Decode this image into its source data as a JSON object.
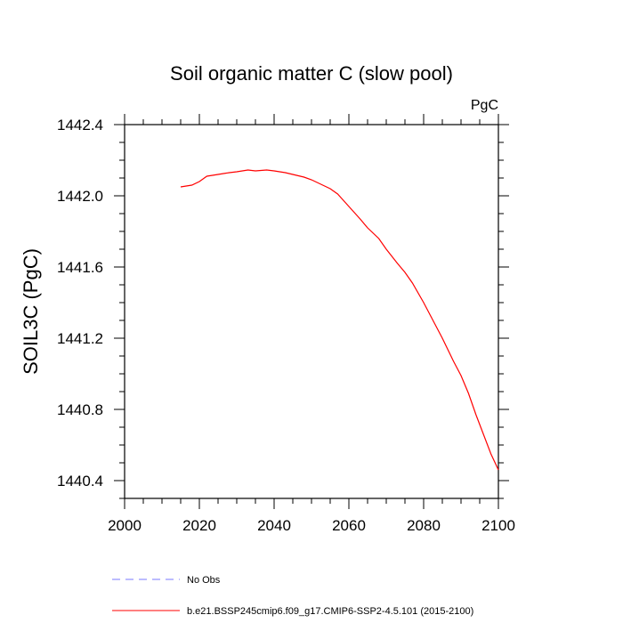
{
  "chart_data": {
    "type": "line",
    "title": "Soil organic matter C (slow pool)",
    "units_label": "PgC",
    "ylabel": "SOIL3C  (PgC)",
    "xlabel": "",
    "xlim": [
      2000,
      2100
    ],
    "ylim": [
      1440.3,
      1442.4
    ],
    "x_ticks": [
      "2000",
      "2020",
      "2040",
      "2060",
      "2080",
      "2100"
    ],
    "y_ticks": [
      "1440.4",
      "1440.8",
      "1441.2",
      "1441.6",
      "1442.0",
      "1442.4"
    ],
    "grid": false,
    "legend_position": "bottom",
    "series": [
      {
        "name": "No Obs",
        "color": "#7a7aff",
        "style": "dashed",
        "x": [],
        "y": []
      },
      {
        "name": "b.e21.BSSP245cmip6.f09_g17.CMIP6-SSP2-4.5.101 (2015-2100)",
        "color": "#ff0000",
        "style": "solid",
        "x": [
          2015,
          2018,
          2020,
          2022,
          2025,
          2028,
          2030,
          2033,
          2035,
          2038,
          2040,
          2043,
          2045,
          2048,
          2050,
          2053,
          2055,
          2057,
          2060,
          2063,
          2065,
          2068,
          2070,
          2073,
          2075,
          2077,
          2080,
          2083,
          2085,
          2088,
          2090,
          2092,
          2094,
          2096,
          2098,
          2100
        ],
        "y": [
          1442.05,
          1442.06,
          1442.08,
          1442.11,
          1442.12,
          1442.13,
          1442.135,
          1442.145,
          1442.14,
          1442.145,
          1442.14,
          1442.13,
          1442.12,
          1442.105,
          1442.09,
          1442.06,
          1442.04,
          1442.01,
          1441.94,
          1441.87,
          1441.82,
          1441.76,
          1441.7,
          1441.62,
          1441.57,
          1441.51,
          1441.4,
          1441.28,
          1441.2,
          1441.07,
          1440.99,
          1440.89,
          1440.77,
          1440.66,
          1440.55,
          1440.46
        ]
      }
    ]
  }
}
